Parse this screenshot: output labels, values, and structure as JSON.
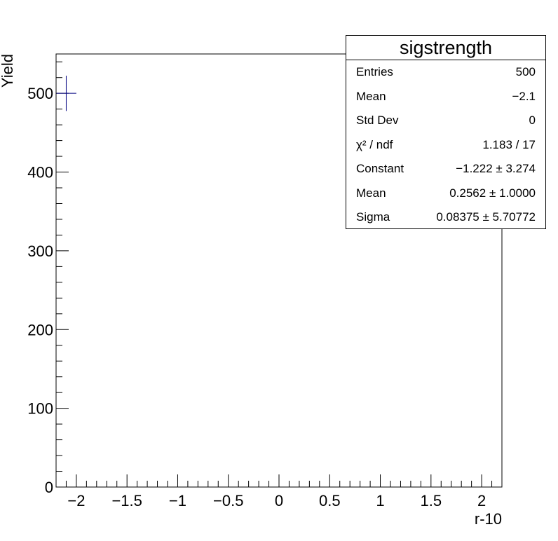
{
  "chart_data": {
    "type": "histogram",
    "xlabel": "r-10",
    "ylabel": "Yield",
    "xlim": [
      -2.2,
      2.2
    ],
    "ylim": [
      0,
      550
    ],
    "x_ticks": [
      {
        "value": -2,
        "label": "−2"
      },
      {
        "value": -1.5,
        "label": "−1.5"
      },
      {
        "value": -1,
        "label": "−1"
      },
      {
        "value": -0.5,
        "label": "−0.5"
      },
      {
        "value": 0,
        "label": "0"
      },
      {
        "value": 0.5,
        "label": "0.5"
      },
      {
        "value": 1,
        "label": "1"
      },
      {
        "value": 1.5,
        "label": "1.5"
      },
      {
        "value": 2,
        "label": "2"
      }
    ],
    "y_ticks": [
      {
        "value": 0,
        "label": "0"
      },
      {
        "value": 100,
        "label": "100"
      },
      {
        "value": 200,
        "label": "200"
      },
      {
        "value": 300,
        "label": "300"
      },
      {
        "value": 400,
        "label": "400"
      },
      {
        "value": 500,
        "label": "500"
      }
    ],
    "points": [
      {
        "x": -2.1,
        "y": 500,
        "xerr": 0.1,
        "yerr": 22.4
      }
    ],
    "colors": {
      "marker": "#000080",
      "axes": "#000000"
    }
  },
  "stats_box": {
    "title": "sigstrength",
    "rows": [
      {
        "label": "Entries",
        "value": "500"
      },
      {
        "label": "Mean",
        "value": "−2.1"
      },
      {
        "label": "Std Dev",
        "value": "0"
      },
      {
        "label": "χ² / ndf",
        "value": "1.183 / 17"
      },
      {
        "label": "Constant",
        "value": "−1.222 ± 3.274"
      },
      {
        "label": "Mean",
        "value": "0.2562 ± 1.0000"
      },
      {
        "label": "Sigma",
        "value": "0.08375 ± 5.70772"
      }
    ]
  }
}
